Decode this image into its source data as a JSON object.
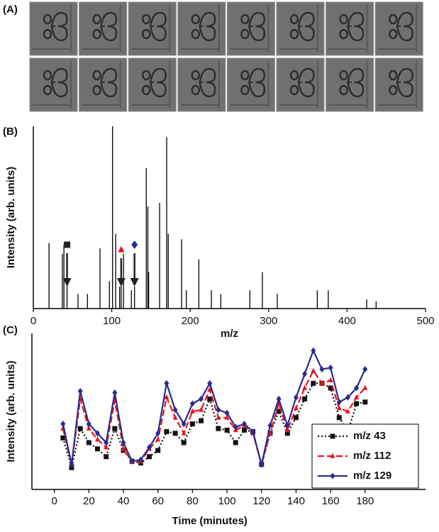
{
  "panel_labels": [
    "(A)",
    "(B)",
    "(C)"
  ],
  "chart_data": [
    {
      "type": "stem",
      "xlabel": "m/z",
      "ylabel": "Intensity (arb. units)",
      "color": "#000000",
      "x": [
        20,
        37,
        39,
        43,
        57,
        69,
        85,
        97,
        101,
        105,
        110,
        112,
        115,
        125,
        129,
        144,
        146,
        147,
        161,
        170,
        172,
        189,
        195,
        211,
        227,
        239,
        276,
        292,
        311,
        362,
        376,
        425,
        437
      ],
      "values": [
        36,
        30,
        35,
        14,
        8,
        8,
        33,
        15,
        100,
        41,
        12,
        15,
        30,
        10,
        12,
        77,
        56,
        20,
        58,
        94,
        41,
        38,
        10,
        27,
        10,
        8,
        10,
        20,
        8,
        10,
        10,
        5,
        4
      ],
      "xlim": [
        0,
        500
      ],
      "xticks": [
        0,
        100,
        200,
        300,
        400,
        500
      ],
      "ylim": [
        0,
        100
      ],
      "annotations": [
        {
          "x": 43,
          "shape": "square",
          "color": "#222222"
        },
        {
          "x": 112,
          "shape": "triangle",
          "color": "#e8141e"
        },
        {
          "x": 129,
          "shape": "diamond",
          "color": "#2b2b8f"
        }
      ]
    },
    {
      "type": "line",
      "xlabel": "Time (minutes)",
      "ylabel": "Intensity (arb. units)",
      "x": [
        5,
        10,
        15,
        20,
        25,
        30,
        35,
        40,
        45,
        50,
        55,
        60,
        65,
        70,
        75,
        80,
        85,
        90,
        95,
        100,
        105,
        110,
        115,
        120,
        125,
        130,
        135,
        140,
        145,
        150,
        155,
        160,
        165,
        170,
        175,
        180
      ],
      "series": [
        {
          "name": "m/z 43",
          "color": "#111111",
          "linestyle": "dotted",
          "marker": "square",
          "values": [
            33,
            14,
            39,
            30,
            26,
            21,
            39,
            25,
            18,
            17,
            21,
            25,
            37,
            36,
            30,
            42,
            44,
            58,
            39,
            38,
            30,
            38,
            37,
            16,
            36,
            50,
            36,
            46,
            58,
            68,
            68,
            65,
            46,
            37,
            55,
            56
          ]
        },
        {
          "name": "m/z 112",
          "color": "#e8141e",
          "linestyle": "dashed",
          "marker": "triangle",
          "values": [
            39,
            16,
            58,
            39,
            32,
            27,
            57,
            26,
            18,
            18,
            26,
            32,
            59,
            46,
            36,
            50,
            51,
            64,
            46,
            46,
            38,
            41,
            36,
            16,
            36,
            55,
            38,
            52,
            65,
            76,
            68,
            70,
            52,
            50,
            59,
            65
          ]
        },
        {
          "name": "m/z 129",
          "color": "#2b2b8f",
          "linestyle": "solid",
          "marker": "diamond",
          "values": [
            42,
            16,
            63,
            42,
            36,
            30,
            62,
            30,
            18,
            19,
            27,
            36,
            68,
            51,
            42,
            55,
            58,
            68,
            51,
            49,
            40,
            42,
            37,
            16,
            41,
            58,
            41,
            59,
            74,
            89,
            77,
            78,
            56,
            59,
            65,
            77
          ]
        }
      ],
      "xlim": [
        -13,
        215
      ],
      "xticks": [
        0,
        20,
        40,
        60,
        80,
        100,
        120,
        140,
        160,
        180
      ],
      "ylim": [
        0,
        100
      ],
      "legend": "lower right"
    }
  ]
}
